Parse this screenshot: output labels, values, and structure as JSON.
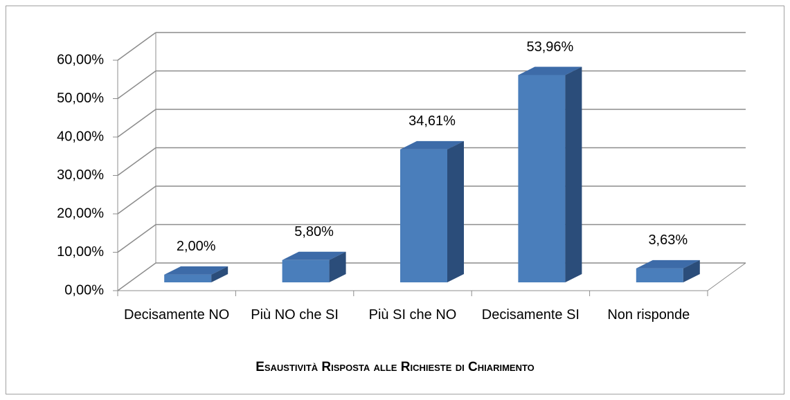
{
  "chart_data": {
    "type": "bar3d",
    "title": "Esaustività Risposta alle Richieste di Chiarimento",
    "categories": [
      "Decisamente NO",
      "Più NO che SI",
      "Più SI che NO",
      "Decisamente SI",
      "Non risponde"
    ],
    "values": [
      2.0,
      5.8,
      34.61,
      53.96,
      3.63
    ],
    "value_labels": [
      "2,00%",
      "5,80%",
      "34,61%",
      "53,96%",
      "3,63%"
    ],
    "color": "#4a7ebb",
    "ylim": [
      0,
      60
    ],
    "yticks": [
      {
        "value": 0,
        "label": "0,00%"
      },
      {
        "value": 10,
        "label": "10,00%"
      },
      {
        "value": 20,
        "label": "20,00%"
      },
      {
        "value": 30,
        "label": "30,00%"
      },
      {
        "value": 40,
        "label": "40,00%"
      },
      {
        "value": 50,
        "label": "50,00%"
      },
      {
        "value": 60,
        "label": "60,00%"
      }
    ],
    "grid": true
  }
}
